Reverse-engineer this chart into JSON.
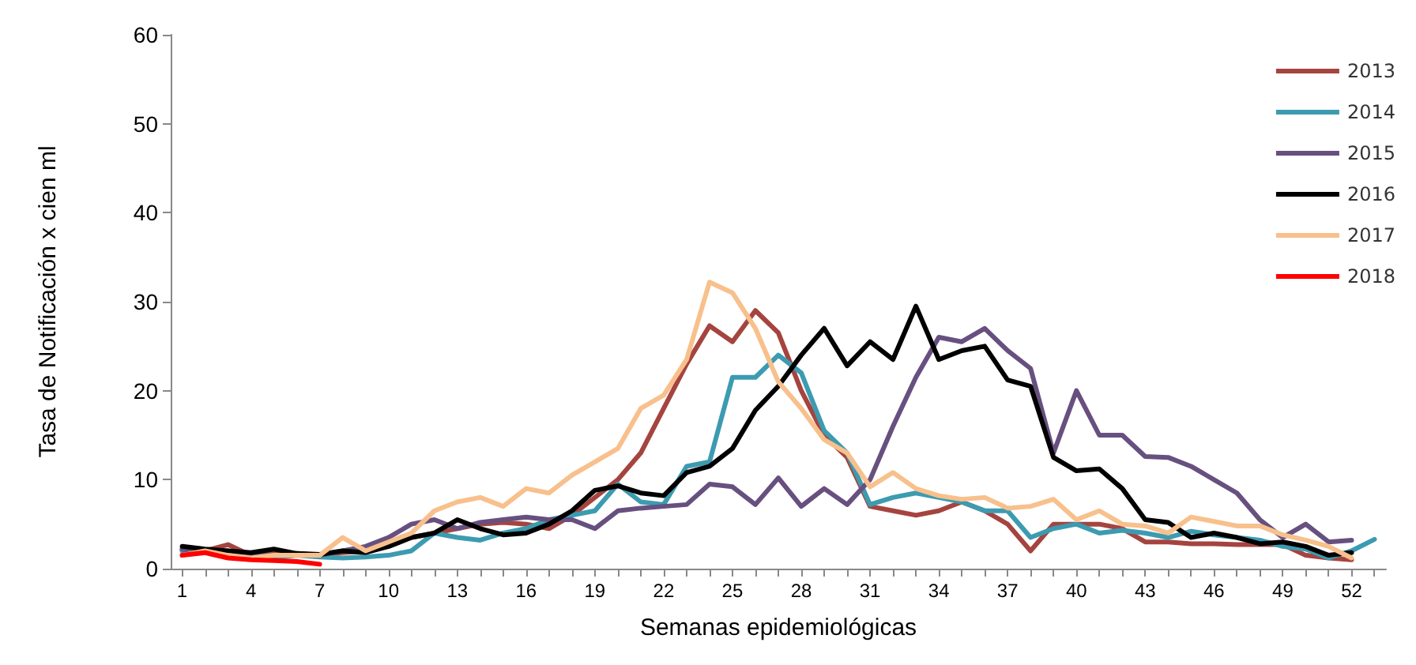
{
  "chart_data": {
    "type": "line",
    "xlabel": "Semanas epidemiológicas",
    "ylabel": "Tasa de Notificación x cien ml",
    "categories": [
      "1",
      null,
      null,
      "4",
      null,
      null,
      "7",
      null,
      null,
      "10",
      null,
      null,
      "13",
      null,
      null,
      "16",
      null,
      null,
      "19",
      null,
      null,
      "22",
      null,
      null,
      "25",
      null,
      null,
      "28",
      null,
      null,
      "31",
      null,
      null,
      "34",
      null,
      null,
      "37",
      null,
      null,
      "40",
      null,
      null,
      "43",
      null,
      null,
      "46",
      null,
      null,
      "49",
      null,
      null,
      "52",
      null
    ],
    "ylim": [
      0,
      60
    ],
    "yticks": [
      0,
      10,
      20,
      30,
      40,
      50,
      60
    ],
    "grid": false,
    "legend": "top right",
    "marker": "none",
    "line_style": "solid",
    "series": [
      {
        "name": "2013",
        "color": "#a5443f",
        "values": [
          2.2,
          2.0,
          2.7,
          1.5,
          1.8,
          1.5,
          1.5,
          1.8,
          2.0,
          2.5,
          3.5,
          4.0,
          4.5,
          5,
          5.2,
          5,
          4.5,
          6,
          8,
          10,
          13,
          18,
          23,
          27.3,
          25.5,
          29,
          26.5,
          20,
          15,
          12.5,
          7,
          6.5,
          6,
          6.5,
          7.5,
          6.5,
          5,
          2,
          5,
          5,
          5,
          4.5,
          3,
          3,
          2.8,
          2.8,
          2.7,
          2.7,
          2.7,
          1.5,
          1.2,
          1.0,
          null
        ]
      },
      {
        "name": "2014",
        "color": "#3c9bb0",
        "values": [
          2.0,
          2,
          1.7,
          1.3,
          1.2,
          1.5,
          1.3,
          1.2,
          1.3,
          1.5,
          2,
          4,
          3.5,
          3.2,
          4,
          4.5,
          5.5,
          6,
          6.5,
          9.5,
          7.5,
          7.2,
          11.5,
          12,
          21.5,
          21.5,
          24,
          22,
          15.5,
          13,
          7.2,
          8,
          8.5,
          8,
          7.5,
          6.5,
          6.5,
          3.5,
          4.5,
          5,
          4,
          4.3,
          4,
          3.5,
          4.2,
          3.8,
          3.5,
          3.2,
          2.5,
          2.2,
          1.2,
          2,
          3.3
        ]
      },
      {
        "name": "2015",
        "color": "#67507f",
        "values": [
          2.2,
          1.8,
          2,
          1.5,
          1.5,
          1.7,
          1.5,
          2,
          2.5,
          3.5,
          5,
          5.5,
          4.5,
          5.2,
          5.5,
          5.8,
          5.5,
          5.5,
          4.5,
          6.5,
          6.8,
          7,
          7.2,
          9.5,
          9.2,
          7.2,
          10.2,
          7,
          9,
          7.2,
          10,
          16,
          21.5,
          26,
          25.5,
          27,
          24.5,
          22.5,
          13,
          20,
          15,
          15,
          12.6,
          12.5,
          11.5,
          10,
          8.5,
          5.5,
          3.5,
          5,
          3,
          3.2,
          null
        ]
      },
      {
        "name": "2016",
        "color": "#000000",
        "values": [
          2.5,
          2.2,
          2,
          1.8,
          2.2,
          1.7,
          1.6,
          2,
          1.8,
          2.5,
          3.5,
          4,
          5.5,
          4.5,
          3.8,
          4,
          5,
          6.5,
          8.8,
          9.3,
          8.5,
          8.2,
          10.8,
          11.5,
          13.5,
          17.8,
          20.5,
          24,
          27,
          22.8,
          25.5,
          23.5,
          29.5,
          23.5,
          24.5,
          25,
          21.2,
          20.5,
          12.5,
          11,
          11.2,
          9,
          5.5,
          5.2,
          3.5,
          4,
          3.5,
          2.8,
          3,
          2.5,
          1.5,
          1.8,
          null
        ]
      },
      {
        "name": "2017",
        "color": "#f8c08c",
        "values": [
          1.5,
          2,
          1.5,
          1.2,
          1.5,
          1.5,
          1.5,
          3.5,
          2,
          3,
          4,
          6.5,
          7.5,
          8,
          7,
          9,
          8.5,
          10.5,
          12,
          13.5,
          18,
          19.5,
          23.5,
          32.2,
          31,
          27,
          21,
          18,
          14.5,
          13,
          9.2,
          10.8,
          9,
          8.2,
          7.8,
          8,
          6.8,
          7,
          7.8,
          5.5,
          6.5,
          5,
          4.8,
          4,
          5.8,
          5.3,
          4.8,
          4.8,
          3.8,
          3.2,
          2.5,
          1.2,
          null
        ]
      },
      {
        "name": "2018",
        "color": "#ff0000",
        "values": [
          1.5,
          1.8,
          1.2,
          1.0,
          0.9,
          0.8,
          0.5,
          null,
          null,
          null,
          null,
          null,
          null,
          null,
          null,
          null,
          null,
          null,
          null,
          null,
          null,
          null,
          null,
          null,
          null,
          null,
          null,
          null,
          null,
          null,
          null,
          null,
          null,
          null,
          null,
          null,
          null,
          null,
          null,
          null,
          null,
          null,
          null,
          null,
          null,
          null,
          null,
          null,
          null,
          null,
          null,
          null,
          null
        ]
      }
    ]
  }
}
